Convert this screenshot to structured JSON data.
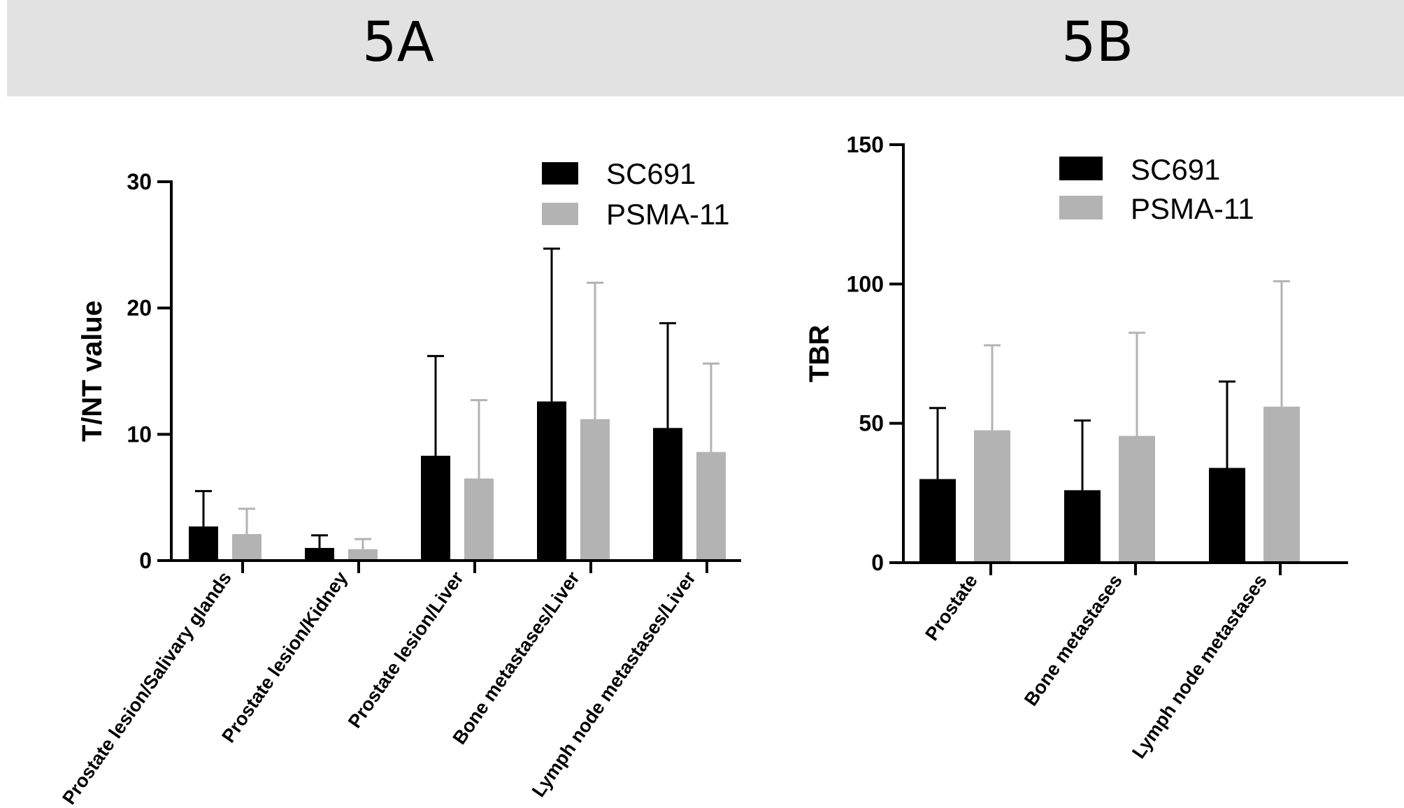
{
  "panels": {
    "a": {
      "label": "5A"
    },
    "b": {
      "label": "5B"
    }
  },
  "colors": {
    "sc691": "#000000",
    "psma11": "#b3b3b3",
    "header_band": "#e2e2e2"
  },
  "chart_data": [
    {
      "type": "bar",
      "panel": "5A",
      "title": "",
      "xlabel": "",
      "ylabel": "T/NT value",
      "ylim": [
        0,
        30
      ],
      "yticks": [
        "0",
        "10",
        "20",
        "30"
      ],
      "categories": [
        "Prostate lesion/Salivary glands",
        "Prostate lesion/Kidney",
        "Prostate lesion/Liver",
        "Bone metastases/Liver",
        "Lymph node metastases/Liver"
      ],
      "series": [
        {
          "name": "SC691",
          "values": [
            2.7,
            1.0,
            8.3,
            12.6,
            10.5
          ],
          "errors": [
            2.8,
            1.0,
            7.9,
            12.1,
            8.3
          ]
        },
        {
          "name": "PSMA-11",
          "values": [
            2.1,
            0.9,
            6.5,
            11.2,
            8.6
          ],
          "errors": [
            2.0,
            0.8,
            6.2,
            10.8,
            7.0
          ]
        }
      ],
      "legend_position": "top-right",
      "error_bars": "upper"
    },
    {
      "type": "bar",
      "panel": "5B",
      "title": "",
      "xlabel": "",
      "ylabel": "TBR",
      "ylim": [
        0,
        150
      ],
      "yticks": [
        "0",
        "50",
        "100",
        "150"
      ],
      "categories": [
        "Prostate",
        "Bone metastases",
        "Lymph node metastases"
      ],
      "series": [
        {
          "name": "SC691",
          "values": [
            30,
            26,
            34
          ],
          "errors": [
            25.5,
            25,
            31
          ]
        },
        {
          "name": "PSMA-11",
          "values": [
            47.5,
            45.5,
            56
          ],
          "errors": [
            30.5,
            37,
            45
          ]
        }
      ],
      "legend_position": "top",
      "error_bars": "upper"
    }
  ]
}
